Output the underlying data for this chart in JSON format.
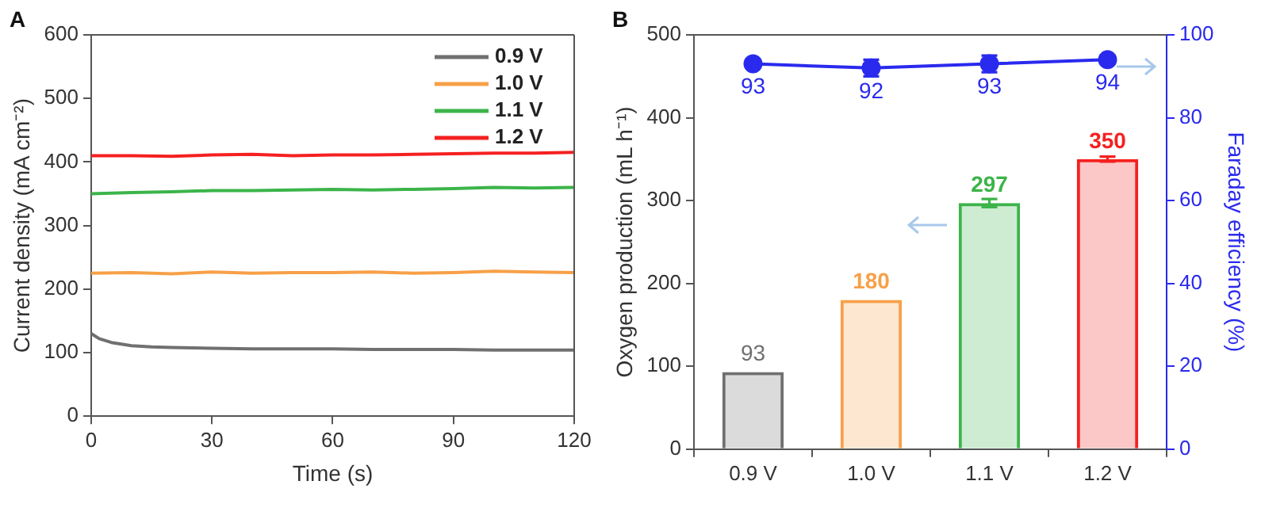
{
  "chart_data": [
    {
      "type": "line",
      "annotations": [
        "A"
      ],
      "xlabel": "Time (s)",
      "ylabel": "Current density (mA cm⁻²)",
      "xlim": [
        0,
        120
      ],
      "xticks": [
        0,
        30,
        60,
        90,
        120
      ],
      "ylim": [
        0,
        600
      ],
      "yticks": [
        0,
        100,
        200,
        300,
        400,
        500,
        600
      ],
      "grid": false,
      "legend": "top right",
      "marker": "none",
      "line_style": "solid",
      "series": [
        {
          "name": "0.9 V",
          "color": "#707070",
          "x": [
            0,
            2,
            5,
            10,
            15,
            20,
            30,
            40,
            50,
            60,
            70,
            80,
            90,
            100,
            110,
            120
          ],
          "values": [
            130,
            122,
            116,
            111,
            109,
            108,
            107,
            106,
            106,
            106,
            105,
            105,
            105,
            104,
            104,
            104
          ]
        },
        {
          "name": "1.0 V",
          "color": "#f7a048",
          "x": [
            0,
            10,
            20,
            30,
            40,
            50,
            60,
            70,
            80,
            90,
            100,
            110,
            120
          ],
          "values": [
            225,
            226,
            224,
            227,
            225,
            226,
            226,
            227,
            225,
            226,
            228,
            227,
            226
          ]
        },
        {
          "name": "1.1 V",
          "color": "#3cb44a",
          "x": [
            0,
            10,
            20,
            30,
            40,
            50,
            60,
            70,
            80,
            90,
            100,
            110,
            120
          ],
          "values": [
            350,
            352,
            353,
            355,
            355,
            356,
            357,
            356,
            357,
            358,
            360,
            359,
            360
          ]
        },
        {
          "name": "1.2 V",
          "color": "#f52020",
          "x": [
            0,
            10,
            20,
            30,
            40,
            50,
            60,
            70,
            80,
            90,
            100,
            110,
            120
          ],
          "values": [
            410,
            410,
            409,
            411,
            412,
            410,
            411,
            411,
            412,
            413,
            414,
            414,
            415
          ]
        }
      ]
    },
    {
      "type": "bar",
      "annotations": [
        "B"
      ],
      "ylabel": "Oxygen production (mL h⁻¹)",
      "y2label": "Faraday efficiency (%)",
      "categories": [
        "0.9 V",
        "1.0 V",
        "1.1 V",
        "1.2 V"
      ],
      "ylim": [
        0,
        500
      ],
      "yticks": [
        0,
        100,
        200,
        300,
        400,
        500
      ],
      "y2lim": [
        0,
        100
      ],
      "y2ticks": [
        0,
        20,
        40,
        60,
        80,
        100
      ],
      "grid": false,
      "legend": false,
      "marker": "circle",
      "line_style": "solid",
      "series": [
        {
          "type": "bar",
          "colors": [
            "#707070",
            "#f7a048",
            "#3cb44a",
            "#f52020"
          ],
          "values": [
            93,
            180,
            297,
            350
          ],
          "errors": [
            null,
            null,
            5,
            3
          ],
          "value_labels": [
            "93",
            "180",
            "297",
            "350"
          ]
        },
        {
          "type": "line",
          "axis": "y2",
          "color": "#2a2aee",
          "values": [
            93,
            92,
            93,
            94
          ],
          "errors": [
            null,
            2,
            2,
            1
          ],
          "value_labels": [
            "93",
            "92",
            "93",
            "94"
          ]
        }
      ]
    }
  ]
}
